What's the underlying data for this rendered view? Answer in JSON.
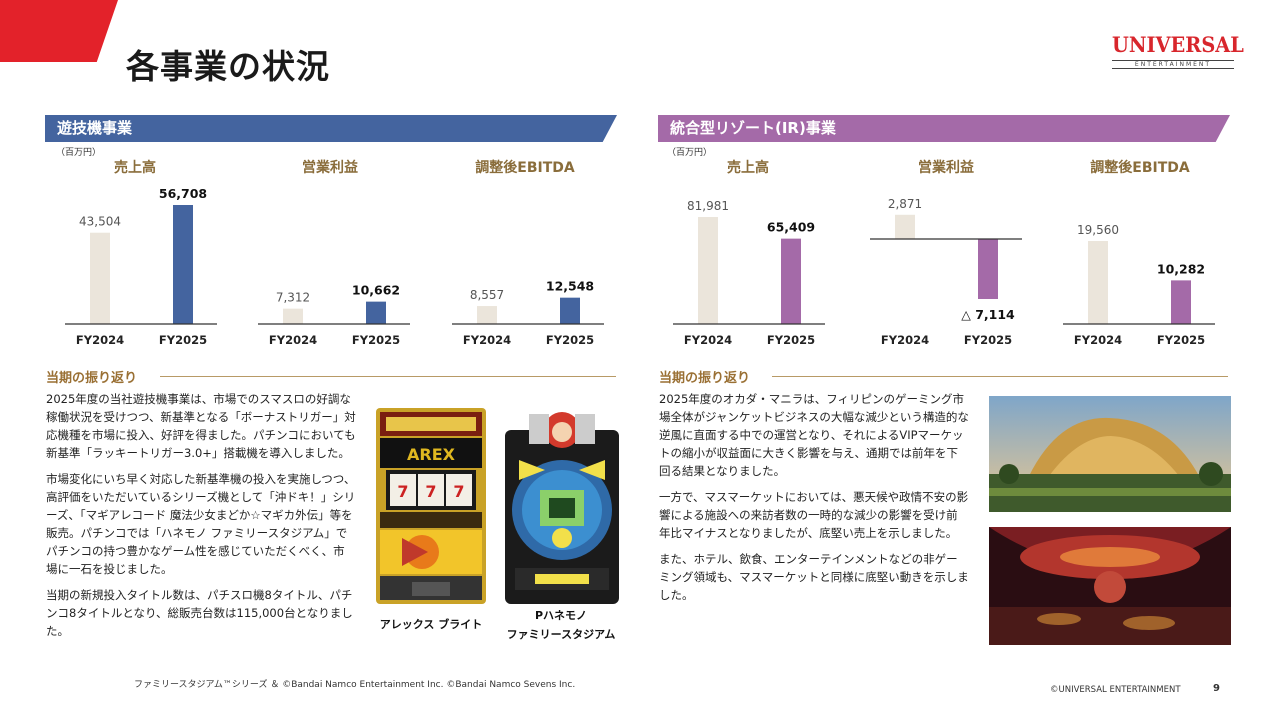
{
  "header": {
    "title": "各事業の状況",
    "logo": {
      "text": "UNIVERSAL",
      "sub": "ENTERTAINMENT"
    }
  },
  "colors": {
    "accent_red": "#e3222a",
    "gaming_blue": "#44649f",
    "resort_purple": "#a46aa8",
    "prior_year_beige": "#ebe5db",
    "gold_heading": "#9a7034"
  },
  "gaming": {
    "title": "遊技機事業",
    "unit": "（百万円）",
    "review_heading": "当期の振り返り",
    "paragraphs": [
      "2025年度の当社遊技機事業は、市場でのスマスロの好調な稼働状況を受けつつ、新基準となる「ボーナストリガー」対応機種を市場に投入、好評を得ました。パチンコにおいても新基準「ラッキートリガー3.0+」搭載機を導入しました。",
      "市場変化にいち早く対応した新基準機の投入を実施しつつ、高評価をいただいているシリーズ機として「沖ドキ！」シリーズ、「マギアレコード 魔法少女まどか☆マギカ外伝」等を販売。パチンコでは「ハネモノ ファミリースタジアム」でパチンコの持つ豊かなゲーム性を感じていただくべく、市場に一石を投じました。",
      "当期の新規投入タイトル数は、パチスロ機8タイトル、パチンコ8タイトルとなり、総販売台数は115,000台となりました。"
    ],
    "products": [
      {
        "caption": "アレックス ブライト"
      },
      {
        "caption": "Pハネモノ\nファミリースタジアム"
      }
    ],
    "footnote": "ファミリースタジアム™シリーズ ＆ ©Bandai Namco Entertainment Inc. ©Bandai Namco Sevens Inc."
  },
  "resort": {
    "title": "統合型リゾート(IR)事業",
    "unit": "（百万円）",
    "review_heading": "当期の振り返り",
    "paragraphs": [
      "2025年度のオカダ・マニラは、フィリピンのゲーミング市場全体がジャンケットビジネスの大幅な減少という構造的な逆風に直面する中での運営となり、それによるVIPマーケットの縮小が収益面に大きく影響を与え、通期では前年を下回る結果となりました。",
      "一方で、マスマーケットにおいては、悪天候や政情不安の影響による施設への来訪者数の一時的な減少の影響を受け前年比マイナスとなりましたが、底堅い売上を示しました。",
      "また、ホテル、飲食、エンターテインメントなどの非ゲーミング領域も、マスマーケットと同様に底堅い動きを示しました。"
    ]
  },
  "chart_data": [
    {
      "type": "bar",
      "segment": "遊技機事業",
      "title": "売上高",
      "categories": [
        "FY2024",
        "FY2025"
      ],
      "values": [
        43504,
        56708
      ],
      "value_labels": [
        "43,504",
        "56,708"
      ]
    },
    {
      "type": "bar",
      "segment": "遊技機事業",
      "title": "営業利益",
      "categories": [
        "FY2024",
        "FY2025"
      ],
      "values": [
        7312,
        10662
      ],
      "value_labels": [
        "7,312",
        "10,662"
      ]
    },
    {
      "type": "bar",
      "segment": "遊技機事業",
      "title": "調整後EBITDA",
      "categories": [
        "FY2024",
        "FY2025"
      ],
      "values": [
        8557,
        12548
      ],
      "value_labels": [
        "8,557",
        "12,548"
      ]
    },
    {
      "type": "bar",
      "segment": "統合型リゾート(IR)事業",
      "title": "売上高",
      "categories": [
        "FY2024",
        "FY2025"
      ],
      "values": [
        81981,
        65409
      ],
      "value_labels": [
        "81,981",
        "65,409"
      ]
    },
    {
      "type": "bar",
      "segment": "統合型リゾート(IR)事業",
      "title": "営業利益",
      "categories": [
        "FY2024",
        "FY2025"
      ],
      "values": [
        2871,
        -7114
      ],
      "value_labels": [
        "2,871",
        "△ 7,114"
      ]
    },
    {
      "type": "bar",
      "segment": "統合型リゾート(IR)事業",
      "title": "調整後EBITDA",
      "categories": [
        "FY2024",
        "FY2025"
      ],
      "values": [
        19560,
        10282
      ],
      "value_labels": [
        "19,560",
        "10,282"
      ]
    }
  ],
  "footer": {
    "copyright": "©UNIVERSAL ENTERTAINMENT",
    "page": "9"
  }
}
